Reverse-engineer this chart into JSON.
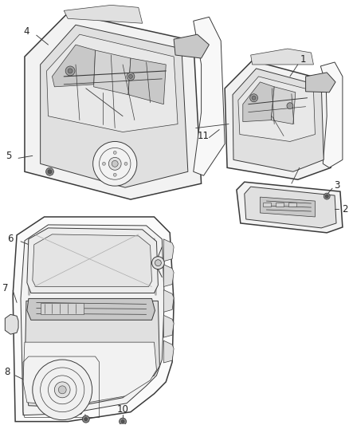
{
  "background_color": "#ffffff",
  "fig_width": 4.38,
  "fig_height": 5.33,
  "dpi": 100,
  "line_color": "#3a3a3a",
  "text_color": "#222222",
  "font_size": 8,
  "fill_light": "#f2f2f2",
  "fill_mid": "#e0e0e0",
  "fill_dark": "#c8c8c8",
  "fill_mech": "#d4d4d4"
}
